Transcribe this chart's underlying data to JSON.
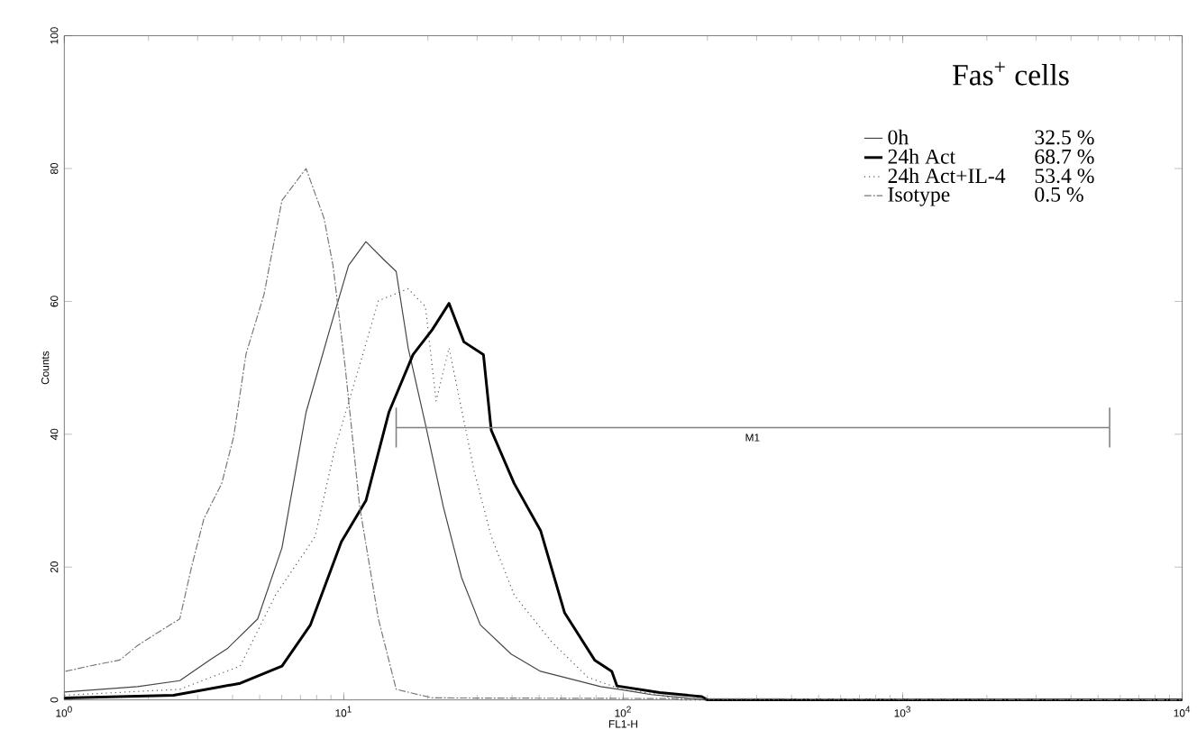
{
  "chart_data": {
    "type": "line",
    "title": "Fas$^{+}$ cells",
    "xlabel": "FL1-H",
    "ylabel": "Counts",
    "log": "x",
    "xlim": [
      1,
      10000
    ],
    "ylim": [
      0,
      100
    ],
    "xticks": [
      {
        "value": 1,
        "label": "10$^{0}$"
      },
      {
        "value": 10,
        "label": "10$^{1}$"
      },
      {
        "value": 100,
        "label": "10$^{2}$"
      },
      {
        "value": 1000,
        "label": "10$^{3}$"
      },
      {
        "value": 10000,
        "label": "10$^{4}$"
      }
    ],
    "yticks": [
      0,
      20,
      40,
      60,
      80,
      100
    ],
    "legend": "top right",
    "grid": false,
    "series": [
      {
        "name": "0h",
        "color": "#444444",
        "line_style": "solid",
        "x": [
          1,
          1.83,
          2.59,
          3.31,
          3.85,
          4.92,
          6.01,
          7.33,
          8.9,
          10.4,
          12,
          13.9,
          15.4,
          17,
          19.6,
          22.7,
          26.4,
          30.8,
          39.7,
          50.6,
          83,
          100,
          126,
          200,
          10000
        ],
        "values": [
          1.2,
          2,
          2.9,
          6,
          7.8,
          12.2,
          22.9,
          43.3,
          55.7,
          65.4,
          69,
          66.3,
          64.5,
          53,
          41.5,
          29.1,
          18.4,
          11.3,
          6.9,
          4.3,
          2,
          1.5,
          0.8,
          0,
          0
        ]
      },
      {
        "name": "24h Act",
        "color": "#000000",
        "line_style": "solid",
        "x": [
          1,
          2.46,
          4.26,
          6.01,
          7.6,
          9.8,
          12,
          14.5,
          17.7,
          20.7,
          23.8,
          26.9,
          31.6,
          33.7,
          40.7,
          50.6,
          61.7,
          79,
          91,
          95,
          135,
          191,
          200,
          10000
        ],
        "values": [
          0.3,
          0.7,
          2.5,
          5.1,
          11.3,
          23.8,
          30,
          43.3,
          52,
          55.7,
          59.7,
          53.9,
          52,
          40.6,
          32.6,
          25.5,
          13.1,
          6,
          4.3,
          2.1,
          1.1,
          0.5,
          0,
          0
        ]
      },
      {
        "name": "24h Act+IL-4",
        "color": "#555555",
        "line_style": "dotted",
        "x": [
          1,
          2.59,
          4.26,
          5.7,
          7.9,
          9.3,
          11.4,
          13.3,
          17,
          19.6,
          21.4,
          23.8,
          29.3,
          33.7,
          40.7,
          55.5,
          74.7,
          100,
          126,
          160,
          10000
        ],
        "values": [
          0.7,
          1.6,
          5.1,
          15.8,
          24.6,
          37.9,
          50.4,
          60.1,
          61.9,
          59.2,
          45,
          53,
          34.4,
          24.6,
          15.8,
          8.7,
          3.4,
          1.5,
          1,
          0,
          0
        ]
      },
      {
        "name": "Isotype",
        "color": "#777777",
        "line_style": "dashed",
        "x": [
          1.01,
          1.23,
          1.58,
          1.83,
          2.23,
          2.59,
          2.86,
          3.16,
          3.66,
          4.04,
          4.47,
          5.18,
          6.01,
          7.33,
          8.5,
          9.15,
          10.1,
          11.4,
          13.3,
          15.4,
          20.7,
          10000
        ],
        "values": [
          4.3,
          5.1,
          6,
          8.2,
          10.5,
          12.2,
          20.2,
          27.3,
          32.6,
          39.7,
          52.1,
          61,
          75.2,
          80,
          72.5,
          65.4,
          50.4,
          29.1,
          12.2,
          1.6,
          0.3,
          0
        ]
      },
      {
        "type": "line",
        "color": "#808080",
        "line_style": "solid",
        "x": [
          15.4,
          5500
        ],
        "values": [
          41,
          41
        ],
        "errors": [
          3,
          3
        ]
      }
    ],
    "annotations": [
      "32.5 %",
      "68.7 %",
      "53.4 %",
      "0.5 %",
      {
        "text": "M1",
        "x": 290,
        "y": 41
      }
    ]
  }
}
